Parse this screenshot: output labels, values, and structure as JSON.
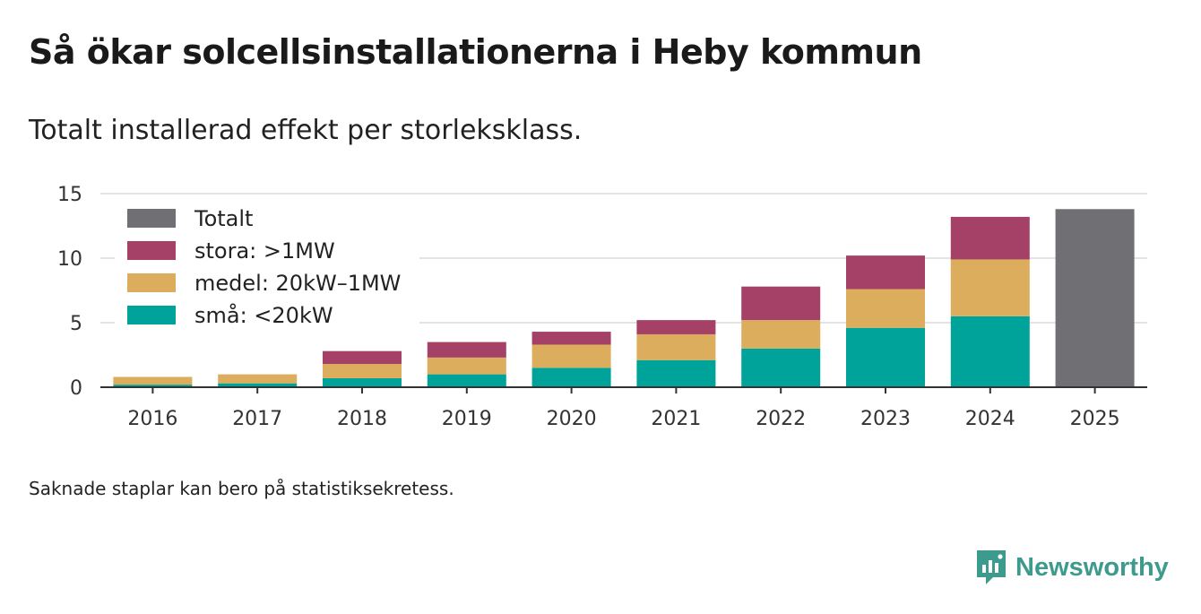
{
  "title": "Så ökar solcellsinstallationerna i Heby kommun",
  "subtitle": "Totalt installerad effekt per storleksklass.",
  "note": "Saknade staplar kan bero på statistiksekretess.",
  "brand": {
    "name": "Newsworthy",
    "icon": "newsworthy-logo-icon",
    "color": "#3d9b8e"
  },
  "chart_data": {
    "type": "bar",
    "stacked": true,
    "title": "Så ökar solcellsinstallationerna i Heby kommun",
    "subtitle": "Totalt installerad effekt per storleksklass.",
    "xlabel": "",
    "ylabel": "",
    "ylim": [
      0,
      15
    ],
    "yticks": [
      0,
      5,
      10,
      15
    ],
    "grid": true,
    "legend_position": "top-left",
    "categories": [
      "2016",
      "2017",
      "2018",
      "2019",
      "2020",
      "2021",
      "2022",
      "2023",
      "2024",
      "2025"
    ],
    "series": [
      {
        "name": "små: <20kW",
        "color": "#00a39a",
        "values": [
          0.2,
          0.3,
          0.7,
          1.0,
          1.5,
          2.1,
          3.0,
          4.6,
          5.5,
          null
        ]
      },
      {
        "name": "medel: 20kW–1MW",
        "color": "#dcad5c",
        "values": [
          0.6,
          0.7,
          1.1,
          1.3,
          1.8,
          2.0,
          2.2,
          3.0,
          4.4,
          null
        ]
      },
      {
        "name": "stora: >1MW",
        "color": "#a54067",
        "values": [
          0,
          0,
          1.0,
          1.2,
          1.0,
          1.1,
          2.6,
          2.6,
          3.3,
          null
        ]
      },
      {
        "name": "Totalt",
        "color": "#706f74",
        "values": [
          null,
          null,
          null,
          null,
          null,
          null,
          null,
          null,
          null,
          13.8
        ]
      }
    ],
    "legend_order": [
      "Totalt",
      "stora: >1MW",
      "medel: 20kW–1MW",
      "små: <20kW"
    ]
  }
}
